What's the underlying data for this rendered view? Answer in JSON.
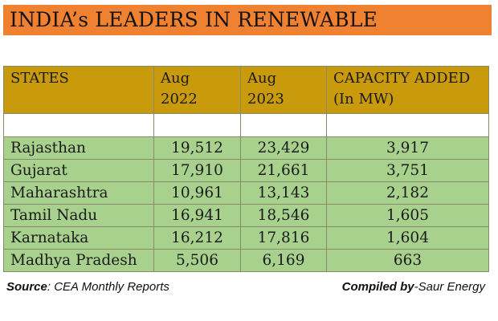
{
  "title": "INDIA’s LEADERS IN RENEWABLE",
  "chart_data": {
    "type": "table",
    "title": "INDIA’s LEADERS IN RENEWABLE",
    "columns": [
      {
        "line1": "STATES",
        "line2": ""
      },
      {
        "line1": "Aug",
        "line2": "2022"
      },
      {
        "line1": "Aug",
        "line2": "2023"
      },
      {
        "line1": "CAPACITY ADDED",
        "line2": "(In MW)"
      }
    ],
    "rows": [
      {
        "state": "Rajasthan",
        "aug_2022": "19,512",
        "aug_2023": "23,429",
        "capacity_added": "3,917"
      },
      {
        "state": "Gujarat",
        "aug_2022": "17,910",
        "aug_2023": "21,661",
        "capacity_added": "3,751"
      },
      {
        "state": "Maharashtra",
        "aug_2022": "10,961",
        "aug_2023": "13,143",
        "capacity_added": "2,182"
      },
      {
        "state": "Tamil Nadu",
        "aug_2022": "16,941",
        "aug_2023": "18,546",
        "capacity_added": "1,605"
      },
      {
        "state": "Karnataka",
        "aug_2022": "16,212",
        "aug_2023": "17,816",
        "capacity_added": "1,604"
      },
      {
        "state": "Madhya Pradesh",
        "aug_2022": "5,506",
        "aug_2023": "6,169",
        "capacity_added": "663"
      }
    ]
  },
  "footer": {
    "source_label": "Source",
    "source_text": ": CEA Monthly Reports",
    "compiled_label": "Compiled by",
    "compiled_text": "-Saur Energy"
  },
  "colors": {
    "banner": "#ef8130",
    "header": "#c99a0c",
    "row": "#a7d18c"
  }
}
